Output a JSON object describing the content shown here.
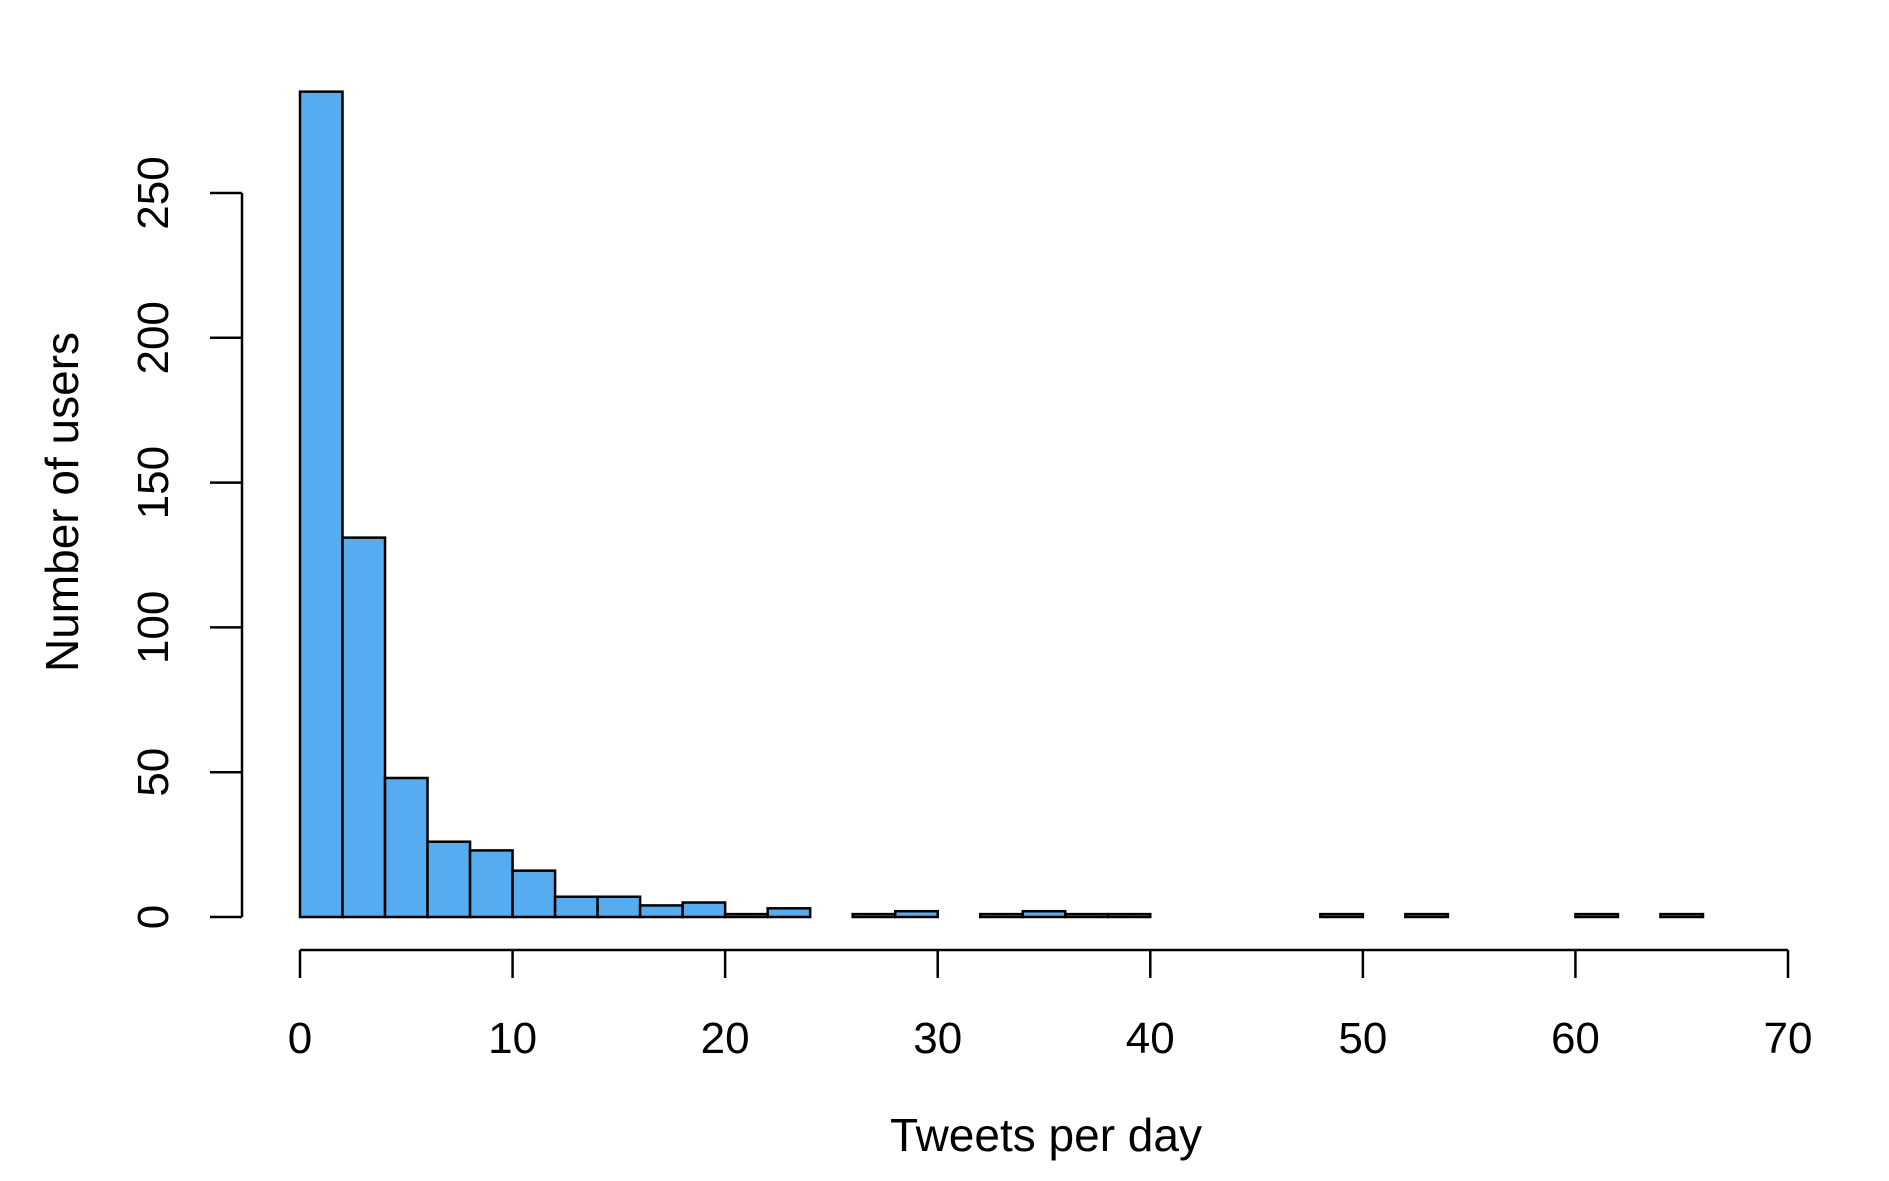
{
  "chart_data": {
    "type": "bar",
    "title": "",
    "xlabel": "Tweets per day",
    "ylabel": "Number of users",
    "bar_color": "#56acee",
    "grid": false,
    "legend": "none",
    "xlim": [
      0,
      70
    ],
    "ylim": [
      0,
      250
    ],
    "x_ticks": [
      0,
      10,
      20,
      30,
      40,
      50,
      60,
      70
    ],
    "y_ticks": [
      0,
      50,
      100,
      150,
      200,
      250
    ],
    "bin_edges": [
      0,
      2,
      4,
      6,
      8,
      10,
      12,
      14,
      16,
      18,
      20,
      22,
      24,
      26,
      28,
      30,
      32,
      34,
      36,
      38,
      40,
      42,
      44,
      46,
      48,
      50,
      52,
      54,
      56,
      58,
      60,
      62,
      64,
      66
    ],
    "values": [
      285,
      131,
      48,
      26,
      23,
      16,
      7,
      7,
      4,
      5,
      1,
      3,
      0,
      1,
      2,
      0,
      1,
      2,
      1,
      1,
      0,
      0,
      0,
      0,
      1,
      0,
      1,
      0,
      0,
      0,
      1,
      0,
      1
    ]
  }
}
